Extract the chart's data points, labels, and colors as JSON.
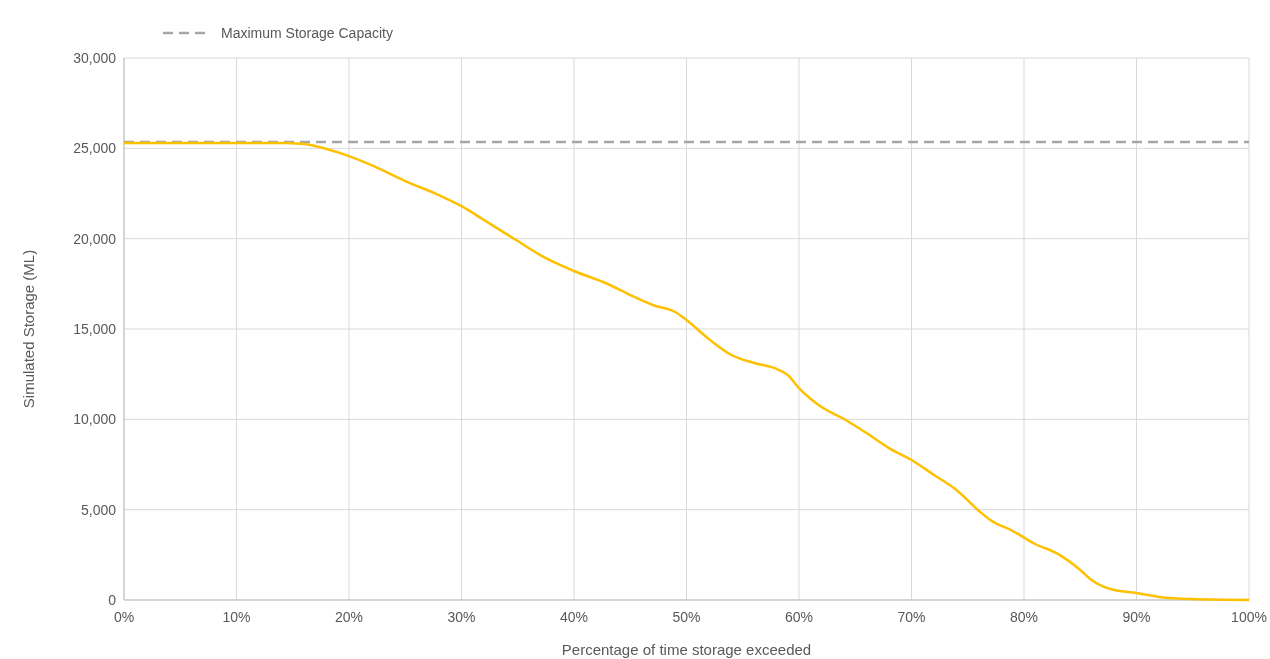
{
  "chart_data": {
    "type": "line",
    "xlabel": "Percentage of  time storage exceeded",
    "ylabel": "Simulated Storage (ML)",
    "xlim": [
      0,
      100
    ],
    "ylim": [
      0,
      30000
    ],
    "xticks": [
      {
        "value": 0,
        "label": "0%"
      },
      {
        "value": 10,
        "label": "10%"
      },
      {
        "value": 20,
        "label": "20%"
      },
      {
        "value": 30,
        "label": "30%"
      },
      {
        "value": 40,
        "label": "40%"
      },
      {
        "value": 50,
        "label": "50%"
      },
      {
        "value": 60,
        "label": "60%"
      },
      {
        "value": 70,
        "label": "70%"
      },
      {
        "value": 80,
        "label": "80%"
      },
      {
        "value": 90,
        "label": "90%"
      },
      {
        "value": 100,
        "label": "100%"
      }
    ],
    "yticks": [
      0,
      {
        "value": 5000,
        "label": "5,000"
      },
      {
        "value": 10000,
        "label": "10,000"
      },
      {
        "value": 15000,
        "label": "15,000"
      },
      {
        "value": 20000,
        "label": "20,000"
      },
      {
        "value": 25000,
        "label": "25,000"
      },
      {
        "value": 30000,
        "label": "30,000"
      }
    ],
    "grid": true,
    "legend": "top left",
    "marker": "none",
    "line_style": "solid",
    "series": [
      {
        "color": "#ffc000",
        "x": [
          0,
          10,
          14,
          16,
          18,
          20,
          22,
          25,
          28,
          30,
          32,
          35,
          37,
          40,
          43,
          45,
          47,
          49,
          50,
          52,
          54,
          56,
          58,
          59,
          60,
          62,
          64,
          66,
          68,
          70,
          72,
          74,
          76,
          77,
          79,
          81,
          83,
          85,
          86,
          88,
          90,
          92,
          95,
          100
        ],
        "values": [
          25300,
          25300,
          25300,
          25240,
          24960,
          24570,
          24070,
          23190,
          22410,
          21800,
          21030,
          19870,
          19090,
          18210,
          17490,
          16880,
          16330,
          15940,
          15500,
          14440,
          13560,
          13120,
          12790,
          12450,
          11730,
          10680,
          10020,
          9240,
          8410,
          7750,
          6920,
          6090,
          4930,
          4430,
          3820,
          3100,
          2550,
          1660,
          1110,
          550,
          390,
          170,
          50,
          0
        ]
      }
    ],
    "ref_lines": [
      {
        "axis": "y",
        "value": 25350,
        "label": "Maximum Storage Capacity",
        "color": "#a6a6a6",
        "line_style": "dashed"
      }
    ]
  }
}
